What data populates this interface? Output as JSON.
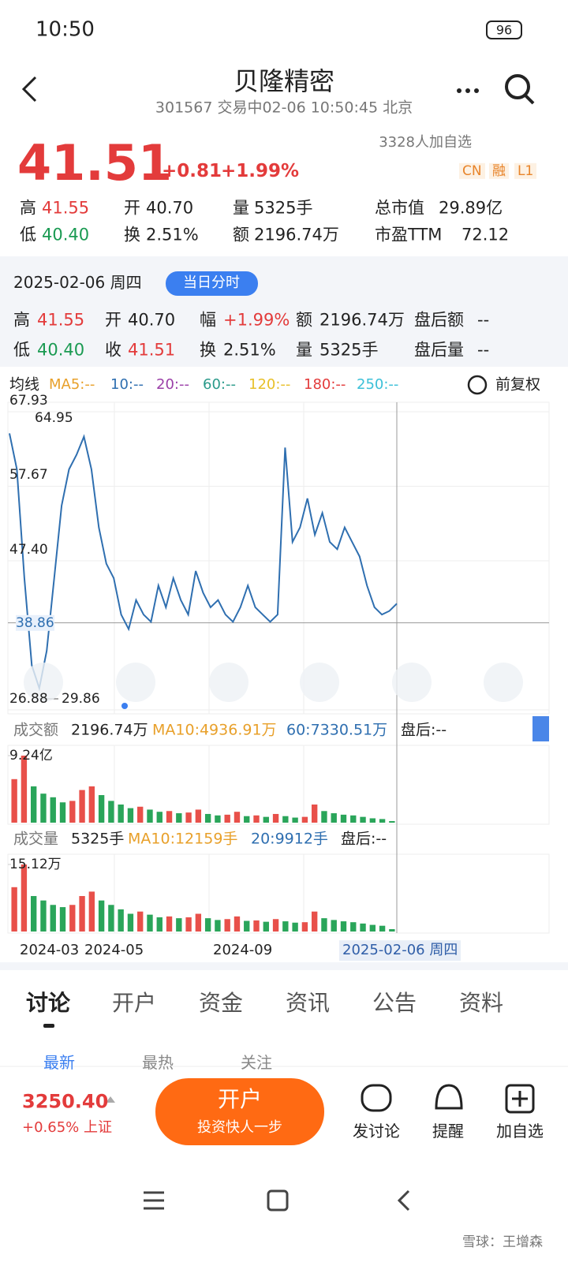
{
  "status_bar": {
    "time": "10:50",
    "battery": "96"
  },
  "header": {
    "title": "贝隆精密",
    "subtitle": "301567 交易中02-06 10:50:45 北京"
  },
  "quote": {
    "price": "41.51",
    "change": "+0.81",
    "change_pct": "+1.99%",
    "followers": "3328人加自选",
    "badges": [
      "CN",
      "融",
      "L1"
    ],
    "stats": [
      {
        "label": "高",
        "value": "41.55"
      },
      {
        "label": "开",
        "value": "40.70"
      },
      {
        "label": "量",
        "value": "5325手"
      },
      {
        "label": "总市值",
        "value": "29.89亿"
      },
      {
        "label": "低",
        "value": "40.40"
      },
      {
        "label": "换",
        "value": "2.51%"
      },
      {
        "label": "额",
        "value": "2196.74万"
      },
      {
        "label": "市盈TTM",
        "value": "72.12"
      }
    ]
  },
  "detail": {
    "date": "2025-02-06 周四",
    "mode": "当日分时",
    "items": [
      {
        "label": "高",
        "value": "41.55"
      },
      {
        "label": "开",
        "value": "40.70"
      },
      {
        "label": "幅",
        "value": "+1.99%"
      },
      {
        "label": "额",
        "value": "2196.74万"
      },
      {
        "label": "盘后额",
        "value": "--"
      },
      {
        "label": "低",
        "value": "40.40"
      },
      {
        "label": "收",
        "value": "41.51"
      },
      {
        "label": "换",
        "value": "2.51%"
      },
      {
        "label": "量",
        "value": "5325手"
      },
      {
        "label": "盘后量",
        "value": "--"
      }
    ]
  },
  "ma_bar": {
    "label": "均线",
    "items": [
      "MA5:--",
      "10:--",
      "20:--",
      "60:--",
      "120:--",
      "180:--",
      "250:--"
    ],
    "adjust": "前复权"
  },
  "price_chart": {
    "type": "line",
    "color": "#2f6fb0",
    "ylim": [
      26.88,
      67.93
    ],
    "yticks": [
      67.93,
      57.67,
      {
        "value": 47.4,
        "label": "47.40"
      },
      26.88
    ],
    "ref_line": 38.86,
    "max": 64.95,
    "min": 29.86,
    "values": [
      64.95,
      60,
      45,
      33,
      29.86,
      35,
      45,
      55,
      60,
      62,
      64.5,
      60,
      52,
      47,
      45,
      40,
      38,
      42,
      40,
      39,
      44,
      41,
      45,
      42,
      40,
      46,
      43,
      41,
      42,
      40,
      39,
      41,
      44,
      41,
      40,
      39,
      40,
      63,
      50,
      52,
      56,
      51,
      54,
      50,
      49,
      52,
      50,
      48,
      44,
      41,
      40,
      40.5,
      41.51
    ]
  },
  "amount_chart": {
    "type": "bar",
    "header": [
      "成交额",
      "2196.74万",
      "MA10:4936.91万",
      "60:7330.51万",
      "盘后:--"
    ],
    "ylim": [
      0,
      9.24
    ],
    "yticks": [
      {
        "value": 9.24,
        "label": "9.24亿"
      }
    ],
    "values": [
      6,
      9.24,
      5,
      4,
      3.5,
      2.8,
      3,
      4.5,
      5,
      3.8,
      3,
      2.5,
      2,
      2.2,
      1.8,
      1.5,
      1.6,
      1.3,
      1.4,
      1.8,
      1.2,
      1.0,
      1.1,
      1.5,
      0.9,
      1.0,
      0.8,
      1.2,
      0.9,
      0.7,
      0.8,
      2.5,
      1.6,
      1.3,
      1.1,
      1.0,
      0.8,
      0.6,
      0.5,
      0.22
    ]
  },
  "volume_chart": {
    "type": "bar",
    "header": [
      "成交量",
      "5325手",
      "MA10:12159手",
      "20:9912手",
      "盘后:--"
    ],
    "ylim": [
      0,
      15.12
    ],
    "yticks": [
      {
        "value": 15.12,
        "label": "15.12万"
      }
    ],
    "values": [
      10,
      15.12,
      8,
      7,
      6,
      5.5,
      6,
      8,
      9,
      7,
      6,
      5,
      4,
      4.5,
      3.8,
      3.2,
      3.4,
      3,
      3.2,
      4,
      3,
      2.6,
      2.8,
      3.4,
      2.4,
      2.5,
      2.2,
      2.8,
      2.3,
      2,
      2.1,
      4.5,
      3,
      2.6,
      2.3,
      2.1,
      1.8,
      1.5,
      1.3,
      0.53
    ]
  },
  "x_labels": [
    "2024-03",
    "2024-05",
    "2024-09",
    "2025-02-06 周四"
  ],
  "tabs": [
    "讨论",
    "开户",
    "资金",
    "资讯",
    "公告",
    "资料"
  ],
  "sub_tabs": [
    "最新",
    "最热",
    "关注"
  ],
  "bottom_bar": {
    "index_value": "3250.40",
    "index_change": "+0.65% 上证",
    "button_title": "开户",
    "button_subtitle": "投资快人一步",
    "actions": [
      "发讨论",
      "提醒",
      "加自选"
    ]
  },
  "watermark": "雪球：王增森"
}
